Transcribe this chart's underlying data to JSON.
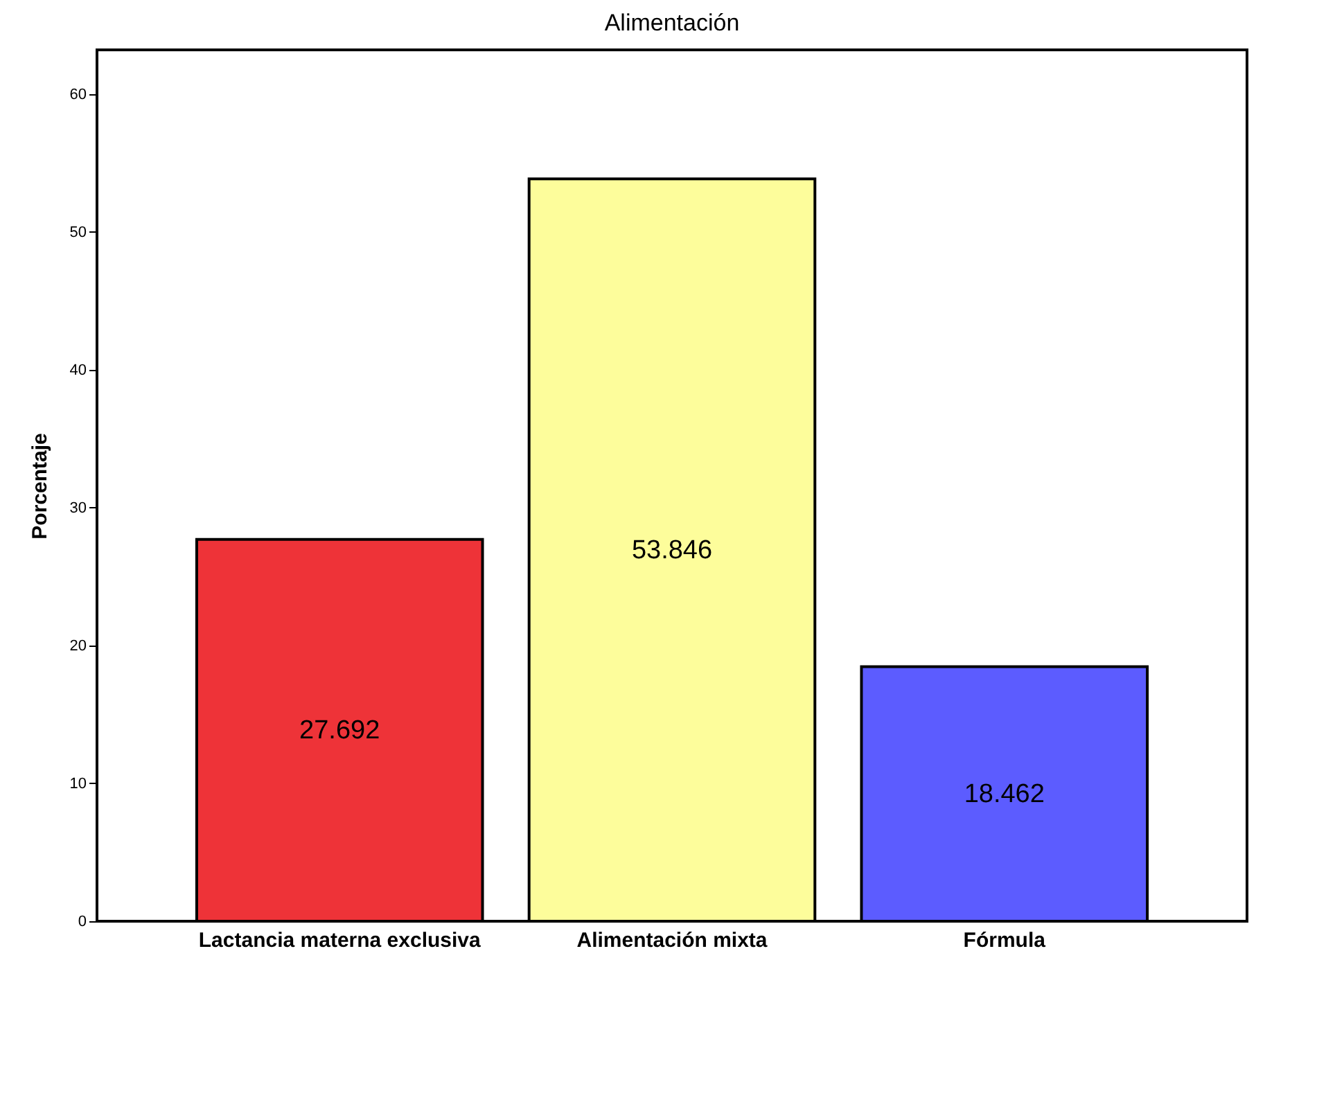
{
  "chart_data": {
    "type": "bar",
    "title": "Alimentación",
    "ylabel": "Porcentaje",
    "categories": [
      "Lactancia materna exclusiva",
      "Alimentación mixta",
      "Fórmula"
    ],
    "values": [
      27.692,
      53.846,
      18.462
    ],
    "colors": [
      "#ee3338",
      "#fdfd9b",
      "#5c5cff"
    ],
    "ylim": [
      0,
      63.2
    ],
    "yticks": [
      0,
      10,
      20,
      30,
      40,
      50,
      60
    ],
    "grid": false,
    "data_labels": true
  }
}
